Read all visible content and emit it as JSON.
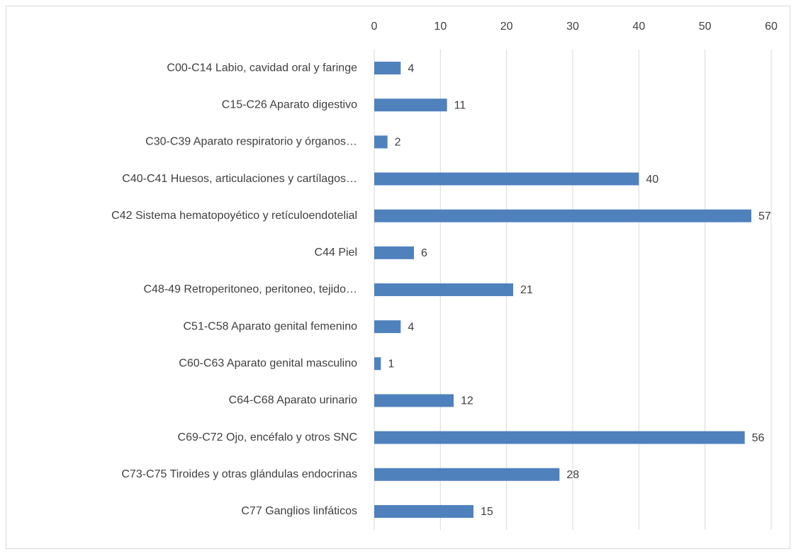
{
  "chart_data": {
    "type": "bar",
    "categories": [
      "C00-C14 Labio, cavidad oral y faringe",
      "C15-C26 Aparato digestivo",
      "C30-C39 Aparato respiratorio y órganos…",
      "C40-C41 Huesos, articulaciones y cartílagos…",
      "C42 Sistema hematopoyético y retículoendotelial",
      "C44 Piel",
      "C48-49 Retroperitoneo, peritoneo, tejido…",
      "C51-C58 Aparato genital femenino",
      "C60-C63 Aparato genital masculino",
      "C64-C68 Aparato urinario",
      "C69-C72 Ojo, encéfalo y otros SNC",
      "C73-C75 Tiroides y otras glándulas endocrinas",
      "C77 Ganglios linfáticos"
    ],
    "values": [
      4,
      11,
      2,
      40,
      57,
      6,
      21,
      4,
      1,
      12,
      56,
      28,
      15
    ],
    "color": "#4f81bd",
    "xlim": [
      0,
      60
    ],
    "xticks": [
      0,
      10,
      20,
      30,
      40,
      50,
      60
    ],
    "grid": true
  }
}
